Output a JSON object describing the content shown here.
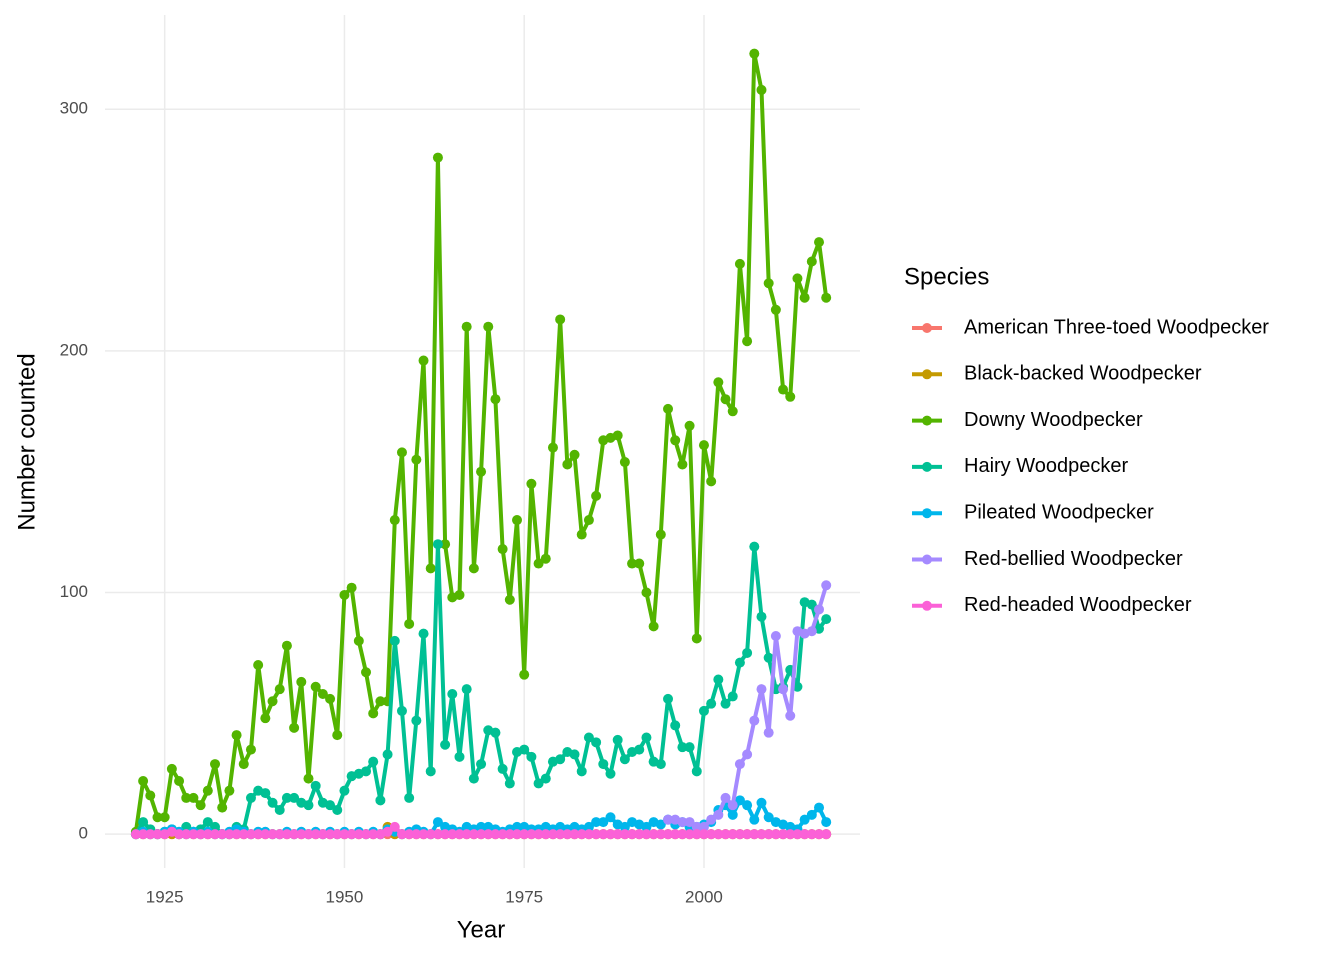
{
  "chart_data": {
    "type": "line",
    "x_label": "Year",
    "y_label": "Number counted",
    "legend_title": "Species",
    "xlim": [
      1916.7,
      2021.7
    ],
    "xticks": [
      1925,
      1950,
      1975,
      2000
    ],
    "ylim": [
      -14,
      339
    ],
    "yticks": [
      0,
      100,
      200,
      300
    ],
    "grid": true,
    "legend": "right",
    "x": [
      1921,
      1922,
      1923,
      1924,
      1925,
      1926,
      1927,
      1928,
      1929,
      1930,
      1931,
      1932,
      1933,
      1934,
      1935,
      1936,
      1937,
      1938,
      1939,
      1940,
      1941,
      1942,
      1943,
      1944,
      1945,
      1946,
      1947,
      1948,
      1949,
      1950,
      1951,
      1952,
      1953,
      1954,
      1955,
      1956,
      1957,
      1958,
      1959,
      1960,
      1961,
      1962,
      1963,
      1964,
      1965,
      1966,
      1967,
      1968,
      1969,
      1970,
      1971,
      1972,
      1973,
      1974,
      1975,
      1976,
      1977,
      1978,
      1979,
      1980,
      1981,
      1982,
      1983,
      1984,
      1985,
      1986,
      1987,
      1988,
      1989,
      1990,
      1991,
      1992,
      1993,
      1994,
      1995,
      1996,
      1997,
      1998,
      1999,
      2000,
      2001,
      2002,
      2003,
      2004,
      2005,
      2006,
      2007,
      2008,
      2009,
      2010,
      2011,
      2012,
      2013,
      2014,
      2015,
      2016,
      2017
    ],
    "series": [
      {
        "name": "American Three-toed Woodpecker",
        "color": "#F8766D",
        "values": [
          0,
          0,
          0,
          0,
          0,
          0,
          0,
          0,
          0,
          0,
          0,
          0,
          0,
          0,
          0,
          0,
          0,
          0,
          0,
          0,
          0,
          0,
          0,
          0,
          0,
          0,
          0,
          0,
          0,
          0,
          0,
          0,
          0,
          0,
          0,
          0,
          0,
          0,
          0,
          0,
          0,
          0,
          0,
          0,
          0,
          0,
          0,
          0,
          0,
          0,
          0,
          0,
          0,
          0,
          0,
          0,
          0,
          0,
          0,
          0,
          0,
          0,
          0,
          0,
          0,
          0,
          0,
          0,
          0,
          0,
          0,
          0,
          0,
          0,
          0,
          0,
          0,
          0,
          0,
          0,
          0,
          0,
          0,
          0,
          0,
          0,
          0,
          0,
          0,
          0,
          0,
          0,
          0,
          0,
          0,
          0,
          0
        ]
      },
      {
        "name": "Black-backed Woodpecker",
        "color": "#C49A00",
        "values": [
          0,
          0,
          0,
          0,
          0,
          0,
          0,
          0,
          0,
          0,
          0,
          0,
          0,
          0,
          0,
          0,
          0,
          0,
          0,
          0,
          0,
          0,
          0,
          0,
          0,
          0,
          0,
          0,
          0,
          0,
          0,
          0,
          0,
          0,
          0,
          3,
          0,
          0,
          0,
          0,
          0,
          0,
          0,
          0,
          0,
          0,
          0,
          0,
          0,
          0,
          0,
          0,
          0,
          0,
          0,
          0,
          0,
          0,
          0,
          0,
          0,
          0,
          0,
          0,
          0,
          0,
          0,
          0,
          0,
          0,
          0,
          0,
          0,
          0,
          0,
          0,
          0,
          0,
          0,
          0,
          0,
          0,
          0,
          0,
          0,
          0,
          0,
          0,
          0,
          0,
          0,
          0,
          0,
          0,
          0,
          0,
          0
        ]
      },
      {
        "name": "Downy Woodpecker",
        "color": "#53B400",
        "values": [
          1,
          22,
          16,
          7,
          7,
          27,
          22,
          15,
          15,
          12,
          18,
          29,
          11,
          18,
          41,
          29,
          35,
          70,
          48,
          55,
          60,
          78,
          44,
          63,
          23,
          61,
          58,
          56,
          41,
          99,
          102,
          80,
          67,
          50,
          55,
          55,
          130,
          158,
          87,
          155,
          196,
          110,
          280,
          120,
          98,
          99,
          210,
          110,
          150,
          210,
          180,
          118,
          97,
          130,
          66,
          145,
          112,
          114,
          160,
          213,
          153,
          157,
          124,
          130,
          140,
          163,
          164,
          165,
          154,
          112,
          112,
          100,
          86,
          124,
          176,
          163,
          153,
          169,
          81,
          161,
          146,
          187,
          180,
          175,
          236,
          204,
          323,
          308,
          228,
          217,
          184,
          181,
          230,
          222,
          237,
          245,
          222
        ]
      },
      {
        "name": "Hairy Woodpecker",
        "color": "#00C094",
        "values": [
          0,
          5,
          2,
          0,
          1,
          2,
          0,
          3,
          1,
          2,
          5,
          3,
          0,
          0,
          3,
          2,
          15,
          18,
          17,
          13,
          10,
          15,
          15,
          13,
          12,
          20,
          13,
          12,
          10,
          18,
          24,
          25,
          26,
          30,
          14,
          33,
          80,
          51,
          15,
          47,
          83,
          26,
          120,
          37,
          58,
          32,
          60,
          23,
          29,
          43,
          42,
          27,
          21,
          34,
          35,
          32,
          21,
          23,
          30,
          31,
          34,
          33,
          26,
          40,
          38,
          29,
          25,
          39,
          31,
          34,
          35,
          40,
          30,
          29,
          56,
          45,
          36,
          36,
          26,
          51,
          54,
          64,
          54,
          57,
          71,
          75,
          119,
          90,
          73,
          60,
          61,
          68,
          61,
          96,
          95,
          85,
          89
        ]
      },
      {
        "name": "Pileated Woodpecker",
        "color": "#00B6EB",
        "values": [
          0,
          1,
          0,
          0,
          1,
          2,
          1,
          0,
          1,
          0,
          1,
          0,
          0,
          1,
          2,
          1,
          0,
          1,
          1,
          0,
          0,
          1,
          0,
          1,
          0,
          1,
          0,
          1,
          0,
          1,
          0,
          1,
          0,
          1,
          0,
          2,
          1,
          0,
          1,
          2,
          1,
          0,
          5,
          3,
          2,
          1,
          3,
          2,
          3,
          3,
          2,
          1,
          2,
          3,
          3,
          2,
          2,
          3,
          2,
          3,
          2,
          3,
          2,
          3,
          5,
          5,
          7,
          4,
          3,
          5,
          4,
          3,
          5,
          4,
          6,
          4,
          5,
          3,
          3,
          4,
          5,
          10,
          12,
          8,
          14,
          12,
          6,
          13,
          7,
          5,
          4,
          3,
          2,
          6,
          8,
          11,
          5
        ]
      },
      {
        "name": "Red-bellied Woodpecker",
        "color": "#A58AFF",
        "values": [
          null,
          null,
          null,
          null,
          null,
          null,
          null,
          null,
          null,
          null,
          null,
          null,
          null,
          null,
          null,
          null,
          null,
          null,
          null,
          null,
          null,
          null,
          null,
          null,
          null,
          null,
          null,
          null,
          null,
          null,
          null,
          null,
          null,
          null,
          null,
          null,
          null,
          null,
          null,
          null,
          null,
          null,
          null,
          null,
          null,
          null,
          null,
          null,
          null,
          null,
          null,
          null,
          null,
          null,
          null,
          null,
          null,
          null,
          null,
          null,
          null,
          null,
          null,
          null,
          null,
          null,
          null,
          null,
          null,
          null,
          null,
          null,
          null,
          null,
          6,
          6,
          5,
          5,
          3,
          3,
          6,
          8,
          15,
          12,
          29,
          33,
          47,
          60,
          42,
          82,
          60,
          49,
          84,
          83,
          84,
          93,
          103
        ]
      },
      {
        "name": "Red-headed Woodpecker",
        "color": "#FB61D7",
        "values": [
          0,
          0,
          0,
          0,
          0,
          1,
          0,
          0,
          0,
          0,
          0,
          0,
          0,
          0,
          0,
          0,
          0,
          0,
          0,
          0,
          0,
          0,
          0,
          0,
          0,
          0,
          0,
          0,
          0,
          0,
          0,
          0,
          0,
          0,
          0,
          1,
          3,
          0,
          0,
          0,
          0,
          0,
          0,
          0,
          0,
          0,
          0,
          0,
          0,
          0,
          0,
          0,
          0,
          0,
          0,
          0,
          0,
          0,
          0,
          0,
          0,
          0,
          0,
          0,
          0,
          0,
          0,
          0,
          0,
          0,
          0,
          0,
          0,
          0,
          0,
          0,
          0,
          0,
          0,
          0,
          0,
          0,
          0,
          0,
          0,
          0,
          0,
          0,
          0,
          0,
          0,
          0,
          0,
          0,
          0,
          0,
          0
        ]
      }
    ]
  }
}
